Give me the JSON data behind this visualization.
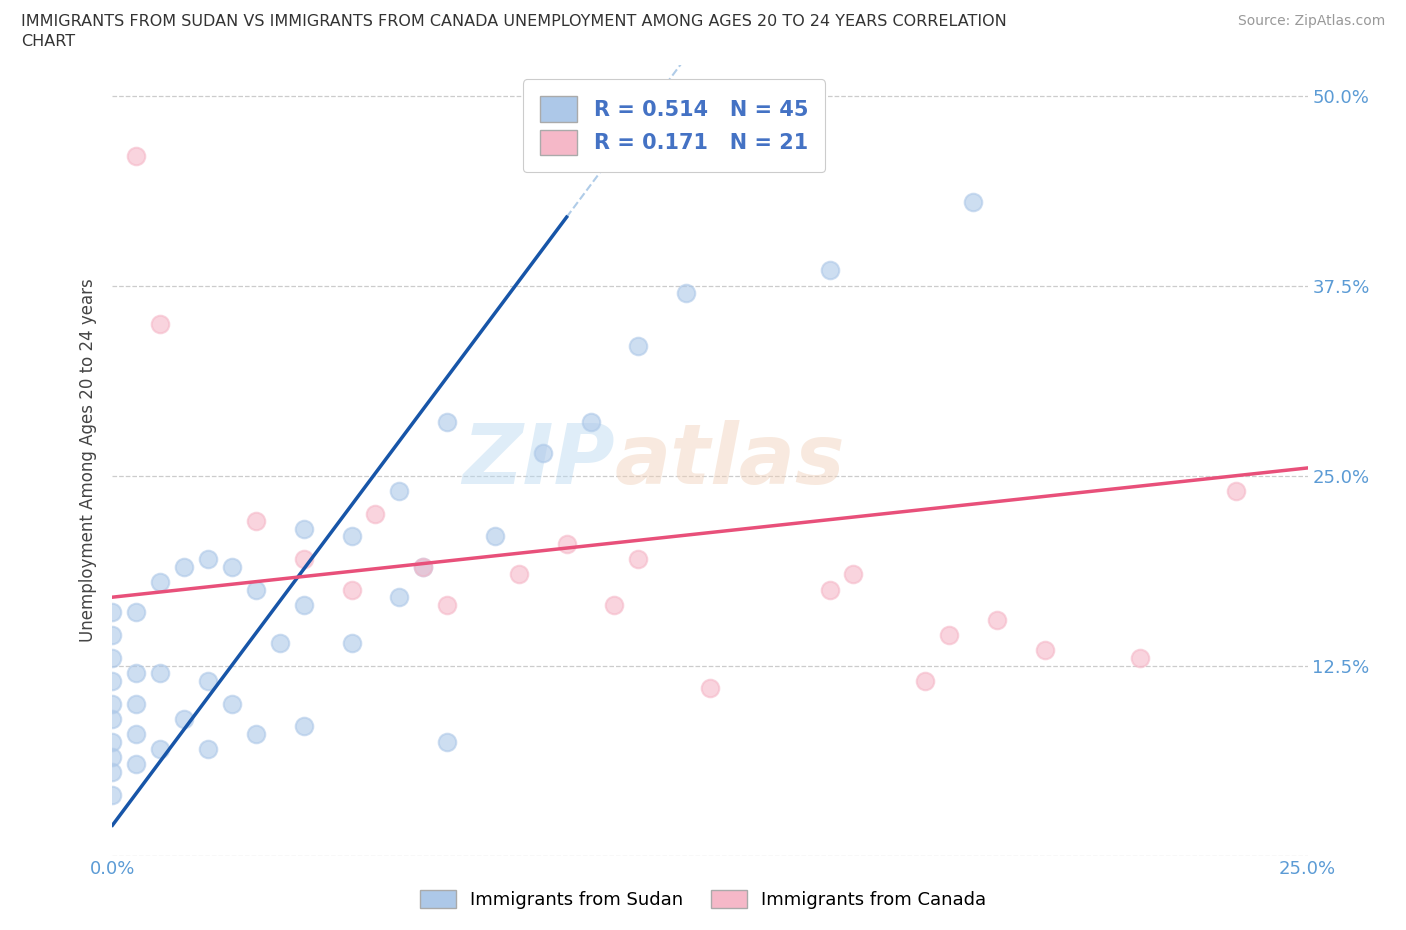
{
  "title_line1": "IMMIGRANTS FROM SUDAN VS IMMIGRANTS FROM CANADA UNEMPLOYMENT AMONG AGES 20 TO 24 YEARS CORRELATION",
  "title_line2": "CHART",
  "source_text": "Source: ZipAtlas.com",
  "ylabel": "Unemployment Among Ages 20 to 24 years",
  "xlim": [
    0.0,
    0.25
  ],
  "ylim": [
    0.0,
    0.52
  ],
  "sudan_color": "#adc8e8",
  "canada_color": "#f5b8c8",
  "sudan_line_color": "#1755a8",
  "canada_line_color": "#e8507a",
  "trendline_dash_color": "#b0cce8",
  "R_sudan": 0.514,
  "N_sudan": 45,
  "R_canada": 0.171,
  "N_canada": 21,
  "legend_label_sudan": "Immigrants from Sudan",
  "legend_label_canada": "Immigrants from Canada",
  "watermark_zip": "ZIP",
  "watermark_atlas": "atlas",
  "sudan_x": [
    0.0,
    0.0,
    0.0,
    0.0,
    0.0,
    0.0,
    0.0,
    0.0,
    0.0,
    0.0,
    0.005,
    0.005,
    0.005,
    0.005,
    0.005,
    0.01,
    0.01,
    0.01,
    0.015,
    0.015,
    0.02,
    0.02,
    0.02,
    0.025,
    0.025,
    0.03,
    0.03,
    0.035,
    0.04,
    0.04,
    0.04,
    0.05,
    0.05,
    0.06,
    0.06,
    0.065,
    0.07,
    0.07,
    0.08,
    0.09,
    0.1,
    0.11,
    0.12,
    0.15,
    0.18
  ],
  "sudan_y": [
    0.04,
    0.055,
    0.065,
    0.075,
    0.09,
    0.1,
    0.115,
    0.13,
    0.145,
    0.16,
    0.06,
    0.08,
    0.1,
    0.12,
    0.16,
    0.07,
    0.12,
    0.18,
    0.09,
    0.19,
    0.07,
    0.115,
    0.195,
    0.1,
    0.19,
    0.08,
    0.175,
    0.14,
    0.085,
    0.165,
    0.215,
    0.14,
    0.21,
    0.17,
    0.24,
    0.19,
    0.075,
    0.285,
    0.21,
    0.265,
    0.285,
    0.335,
    0.37,
    0.385,
    0.43
  ],
  "canada_x": [
    0.005,
    0.01,
    0.03,
    0.04,
    0.05,
    0.055,
    0.065,
    0.07,
    0.085,
    0.095,
    0.105,
    0.11,
    0.125,
    0.15,
    0.155,
    0.17,
    0.175,
    0.185,
    0.195,
    0.215,
    0.235
  ],
  "canada_y": [
    0.46,
    0.35,
    0.22,
    0.195,
    0.175,
    0.225,
    0.19,
    0.165,
    0.185,
    0.205,
    0.165,
    0.195,
    0.11,
    0.175,
    0.185,
    0.115,
    0.145,
    0.155,
    0.135,
    0.13,
    0.24
  ]
}
